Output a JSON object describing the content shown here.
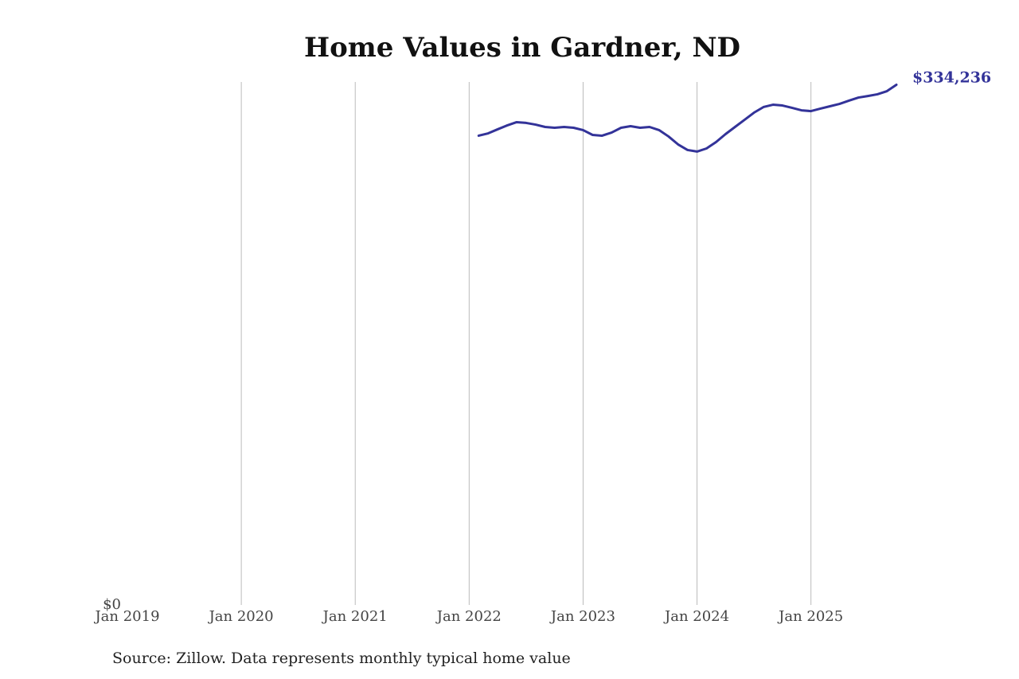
{
  "chart_data": {
    "type": "line",
    "title": "Home Values in Gardner, ND",
    "source": "Source: Zillow. Data represents monthly typical home value",
    "x": [
      "2022-02",
      "2022-03",
      "2022-04",
      "2022-05",
      "2022-06",
      "2022-07",
      "2022-08",
      "2022-09",
      "2022-10",
      "2022-11",
      "2022-12",
      "2023-01",
      "2023-02",
      "2023-03",
      "2023-04",
      "2023-05",
      "2023-06",
      "2023-07",
      "2023-08",
      "2023-09",
      "2023-10",
      "2023-11",
      "2023-12",
      "2024-01",
      "2024-02",
      "2024-03",
      "2024-04",
      "2024-05",
      "2024-06",
      "2024-07",
      "2024-08",
      "2024-09",
      "2024-10",
      "2024-11",
      "2024-12",
      "2025-01",
      "2025-02",
      "2025-03",
      "2025-04",
      "2025-05",
      "2025-06",
      "2025-07",
      "2025-08",
      "2025-09",
      "2025-10"
    ],
    "series": [
      {
        "color": "#333399",
        "values": [
          301500,
          303000,
          305600,
          308100,
          310200,
          309700,
          308600,
          307100,
          306600,
          307100,
          306600,
          305100,
          302000,
          301500,
          303500,
          306600,
          307600,
          306600,
          307100,
          305100,
          301000,
          295900,
          292300,
          291300,
          293300,
          297400,
          302500,
          307100,
          311700,
          316300,
          319900,
          321400,
          320900,
          319400,
          317800,
          317300,
          318900,
          320400,
          321900,
          324000,
          326000,
          327000,
          328100,
          330100,
          334236
        ],
        "value_labels": [
          null,
          null,
          null,
          null,
          null,
          null,
          null,
          null,
          null,
          null,
          null,
          null,
          null,
          null,
          null,
          null,
          null,
          null,
          null,
          null,
          null,
          null,
          null,
          null,
          null,
          null,
          null,
          null,
          null,
          null,
          null,
          null,
          null,
          null,
          null,
          null,
          null,
          null,
          null,
          null,
          null,
          null,
          null,
          null,
          "$334,236"
        ]
      }
    ],
    "xlim": [
      "2019-01",
      "2025-10"
    ],
    "xticks": [
      {
        "value": "2019-01",
        "label": "Jan 2019"
      },
      {
        "value": "2020-01",
        "label": "Jan 2020"
      },
      {
        "value": "2021-01",
        "label": "Jan 2021"
      },
      {
        "value": "2022-01",
        "label": "Jan 2022"
      },
      {
        "value": "2023-01",
        "label": "Jan 2023"
      },
      {
        "value": "2024-01",
        "label": "Jan 2024"
      },
      {
        "value": "2025-01",
        "label": "Jan 2025"
      }
    ],
    "ylim": [
      0,
      336000
    ],
    "yticks": [
      {
        "value": 0,
        "label": "$0"
      }
    ],
    "grid": true
  }
}
